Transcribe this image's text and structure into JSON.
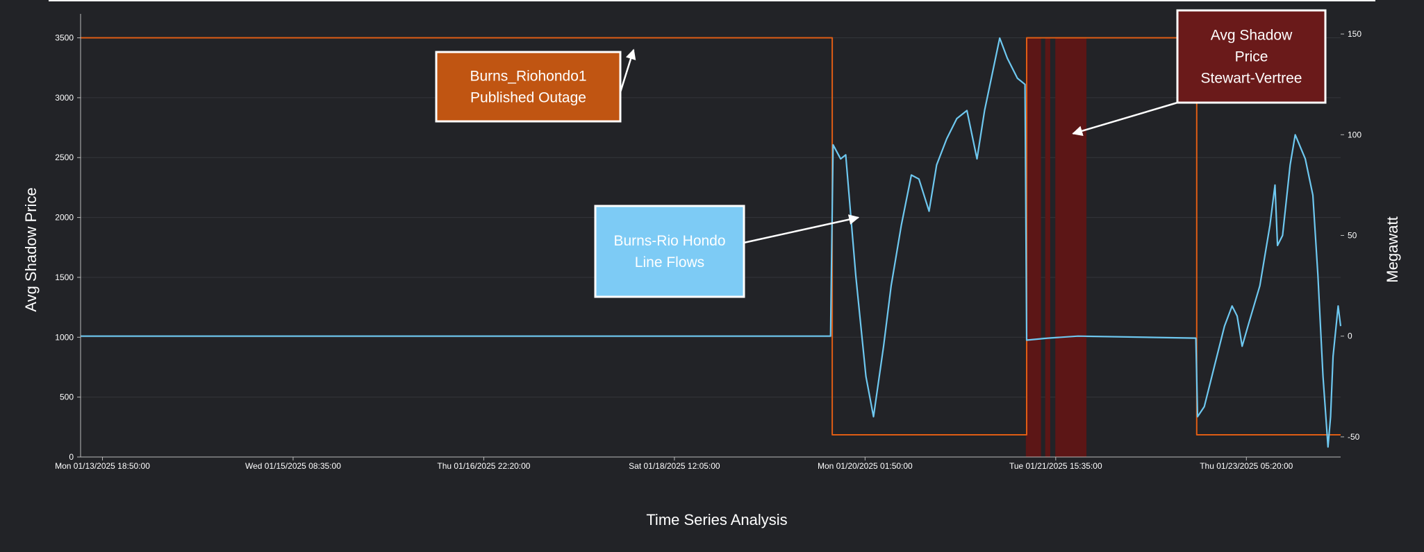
{
  "chart_data": {
    "type": "line",
    "xlabel": "Time Series Analysis",
    "ylabel_left": "Avg Shadow Price",
    "ylabel_right": "Megawatt",
    "x_ticks": [
      {
        "t": "2025-01-13T18:50:00",
        "label": "Mon 01/13/2025 18:50:00"
      },
      {
        "t": "2025-01-15T08:35:00",
        "label": "Wed 01/15/2025 08:35:00"
      },
      {
        "t": "2025-01-16T22:20:00",
        "label": "Thu 01/16/2025 22:20:00"
      },
      {
        "t": "2025-01-18T12:05:00",
        "label": "Sat 01/18/2025 12:05:00"
      },
      {
        "t": "2025-01-20T01:50:00",
        "label": "Mon 01/20/2025 01:50:00"
      },
      {
        "t": "2025-01-21T15:35:00",
        "label": "Tue 01/21/2025 15:35:00"
      },
      {
        "t": "2025-01-23T05:20:00",
        "label": "Thu 01/23/2025 05:20:00"
      }
    ],
    "xlim": [
      "2025-01-13T14:30:00",
      "2025-01-24T00:00:00"
    ],
    "ylim_left": [
      0,
      3700
    ],
    "yticks_left": [
      0,
      500,
      1000,
      1500,
      2000,
      2500,
      3000,
      3500
    ],
    "ylim_right": [
      -60,
      160
    ],
    "yticks_right": [
      -50,
      0,
      50,
      100,
      150
    ],
    "grid": true,
    "colors": {
      "line_flow": "#6ec8f0",
      "outage": "#e05d14",
      "shadow_band": "#5c1616",
      "background": "#222327",
      "grid": "#34363b"
    },
    "series": [
      {
        "name": "Burns_Riohondo1 Published Outage",
        "axis": "left",
        "step": true,
        "points": [
          [
            "2025-01-13T14:30:00",
            3500
          ],
          [
            "2025-01-19T19:20:00",
            3500
          ],
          [
            "2025-01-19T19:20:00",
            185
          ],
          [
            "2025-01-21T09:50:00",
            185
          ],
          [
            "2025-01-21T09:50:00",
            3500
          ],
          [
            "2025-01-22T19:30:00",
            3500
          ],
          [
            "2025-01-22T19:30:00",
            185
          ],
          [
            "2025-01-24T00:00:00",
            185
          ]
        ]
      },
      {
        "name": "Burns-Rio Hondo Line Flows",
        "axis": "right",
        "points": [
          [
            "2025-01-13T14:30:00",
            0
          ],
          [
            "2025-01-19T19:00:00",
            0
          ],
          [
            "2025-01-19T19:30:00",
            95
          ],
          [
            "2025-01-19T21:00:00",
            88
          ],
          [
            "2025-01-19T22:00:00",
            90
          ],
          [
            "2025-01-20T00:00:00",
            30
          ],
          [
            "2025-01-20T02:00:00",
            -20
          ],
          [
            "2025-01-20T03:30:00",
            -40
          ],
          [
            "2025-01-20T05:30:00",
            -5
          ],
          [
            "2025-01-20T07:00:00",
            25
          ],
          [
            "2025-01-20T09:00:00",
            55
          ],
          [
            "2025-01-20T11:00:00",
            80
          ],
          [
            "2025-01-20T12:30:00",
            78
          ],
          [
            "2025-01-20T14:30:00",
            62
          ],
          [
            "2025-01-20T16:00:00",
            85
          ],
          [
            "2025-01-20T18:00:00",
            98
          ],
          [
            "2025-01-20T20:00:00",
            108
          ],
          [
            "2025-01-20T22:00:00",
            112
          ],
          [
            "2025-01-21T00:00:00",
            88
          ],
          [
            "2025-01-21T01:30:00",
            112
          ],
          [
            "2025-01-21T03:00:00",
            130
          ],
          [
            "2025-01-21T04:30:00",
            148
          ],
          [
            "2025-01-21T06:00:00",
            138
          ],
          [
            "2025-01-21T08:00:00",
            128
          ],
          [
            "2025-01-21T09:30:00",
            125
          ],
          [
            "2025-01-21T09:50:00",
            -2
          ],
          [
            "2025-01-21T14:00:00",
            -1
          ],
          [
            "2025-01-21T20:00:00",
            0
          ],
          [
            "2025-01-22T19:20:00",
            -1
          ],
          [
            "2025-01-22T19:40:00",
            -40
          ],
          [
            "2025-01-22T21:00:00",
            -35
          ],
          [
            "2025-01-22T23:00:00",
            -15
          ],
          [
            "2025-01-23T01:00:00",
            5
          ],
          [
            "2025-01-23T02:30:00",
            15
          ],
          [
            "2025-01-23T03:30:00",
            10
          ],
          [
            "2025-01-23T04:30:00",
            -5
          ],
          [
            "2025-01-23T06:00:00",
            8
          ],
          [
            "2025-01-23T08:00:00",
            25
          ],
          [
            "2025-01-23T10:00:00",
            55
          ],
          [
            "2025-01-23T11:00:00",
            75
          ],
          [
            "2025-01-23T11:30:00",
            45
          ],
          [
            "2025-01-23T12:30:00",
            50
          ],
          [
            "2025-01-23T14:00:00",
            85
          ],
          [
            "2025-01-23T15:00:00",
            100
          ],
          [
            "2025-01-23T17:00:00",
            88
          ],
          [
            "2025-01-23T18:30:00",
            70
          ],
          [
            "2025-01-23T19:30:00",
            30
          ],
          [
            "2025-01-23T20:30:00",
            -20
          ],
          [
            "2025-01-23T21:30:00",
            -55
          ],
          [
            "2025-01-23T22:00:00",
            -40
          ],
          [
            "2025-01-23T22:30:00",
            -10
          ],
          [
            "2025-01-23T23:30:00",
            15
          ],
          [
            "2025-01-24T00:00:00",
            5
          ]
        ]
      }
    ],
    "shaded_regions": [
      {
        "name": "Avg Shadow Price Stewart-Vertree",
        "start": "2025-01-21T09:40:00",
        "end": "2025-01-21T12:40:00"
      },
      {
        "name": "Avg Shadow Price Stewart-Vertree",
        "start": "2025-01-21T13:30:00",
        "end": "2025-01-21T14:30:00"
      },
      {
        "name": "Avg Shadow Price Stewart-Vertree",
        "start": "2025-01-21T15:30:00",
        "end": "2025-01-21T21:40:00"
      }
    ],
    "annotations": [
      {
        "name": "outage-callout",
        "lines": [
          "Burns_Riohondo1",
          "Published Outage"
        ],
        "bg": "#c05512",
        "border": "#ffffff",
        "arrow_to": [
          "2025-01-18T04:00:00",
          3400
        ]
      },
      {
        "name": "flow-callout",
        "lines": [
          "Burns-Rio Hondo",
          "Line Flows"
        ],
        "bg": "#7dcbf5",
        "border": "#ffffff",
        "arrow_to": [
          "2025-01-20T00:30:00",
          2000
        ]
      },
      {
        "name": "shadow-callout",
        "lines": [
          "Avg Shadow",
          "Price",
          "Stewart-Vertree"
        ],
        "bg": "#6a1a1a",
        "border": "#ffffff",
        "arrow_to": [
          "2025-01-21T19:00:00",
          2700
        ]
      }
    ]
  }
}
